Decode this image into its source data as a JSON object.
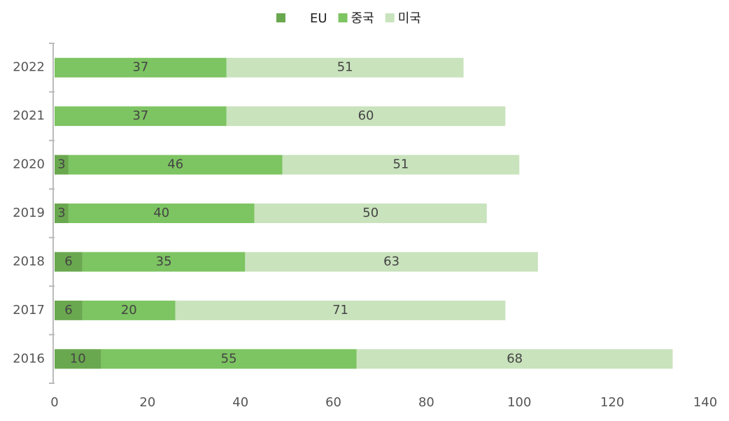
{
  "chart_data": {
    "type": "stacked-horizontal-bar",
    "categories": [
      "2016",
      "2017",
      "2018",
      "2019",
      "2020",
      "2021",
      "2022"
    ],
    "series": [
      {
        "name": "EU",
        "color": "#6aa84f",
        "values": [
          10,
          6,
          6,
          3,
          3,
          0,
          0
        ]
      },
      {
        "name": "중국",
        "color": "#7dc462",
        "values": [
          55,
          20,
          35,
          40,
          46,
          37,
          37
        ]
      },
      {
        "name": "미국",
        "color": "#c9e3bd",
        "values": [
          68,
          71,
          63,
          50,
          51,
          60,
          51
        ]
      }
    ],
    "xlim": [
      0,
      140
    ],
    "xticks": [
      0,
      20,
      40,
      60,
      80,
      100,
      120,
      140
    ],
    "legend": "top"
  }
}
